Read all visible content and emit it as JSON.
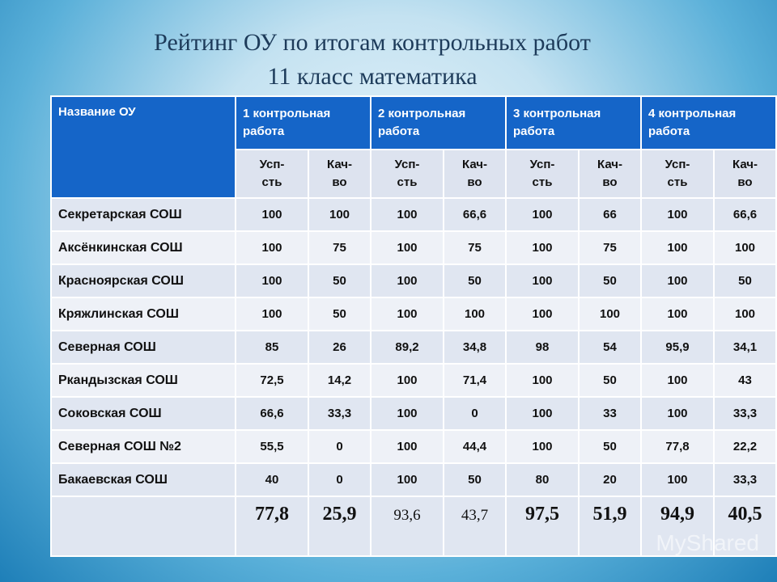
{
  "title_line1": "Рейтинг ОУ по итогам контрольных работ",
  "title_line2": "11 класс математика",
  "table": {
    "header_name": "Название ОУ",
    "works": [
      {
        "line1": "1 контрольная",
        "line2": "работа"
      },
      {
        "line1": "2 контрольная",
        "line2": "работа"
      },
      {
        "line1": "3 контрольная",
        "line2": "работа"
      },
      {
        "line1": "4 контрольная",
        "line2": "работа"
      }
    ],
    "sub_headers": [
      {
        "line1": "Усп-",
        "line2": "сть"
      },
      {
        "line1": "Кач-",
        "line2": "во"
      },
      {
        "line1": "Усп-",
        "line2": "сть"
      },
      {
        "line1": "Кач-",
        "line2": "во"
      },
      {
        "line1": "Усп-",
        "line2": "сть"
      },
      {
        "line1": "Кач-",
        "line2": "во"
      },
      {
        "line1": "Усп-",
        "line2": "сть"
      },
      {
        "line1": "Кач-",
        "line2": "во"
      }
    ],
    "rows": [
      {
        "name": "Секретарская СОШ",
        "values": [
          "100",
          "100",
          "100",
          "66,6",
          "100",
          "66",
          "100",
          "66,6"
        ]
      },
      {
        "name": "Аксёнкинская СОШ",
        "values": [
          "100",
          "75",
          "100",
          "75",
          "100",
          "75",
          "100",
          "100"
        ]
      },
      {
        "name": "Красноярская СОШ",
        "values": [
          "100",
          "50",
          "100",
          "50",
          "100",
          "50",
          "100",
          "50"
        ]
      },
      {
        "name": "Кряжлинская СОШ",
        "values": [
          "100",
          "50",
          "100",
          "100",
          "100",
          "100",
          "100",
          "100"
        ]
      },
      {
        "name": "Северная СОШ",
        "values": [
          "85",
          "26",
          "89,2",
          "34,8",
          "98",
          "54",
          "95,9",
          "34,1"
        ]
      },
      {
        "name": "Ркандызская СОШ",
        "values": [
          "72,5",
          "14,2",
          "100",
          "71,4",
          "100",
          "50",
          "100",
          "43"
        ]
      },
      {
        "name": "Соковская СОШ",
        "values": [
          "66,6",
          "33,3",
          "100",
          "0",
          "100",
          "33",
          "100",
          "33,3"
        ]
      },
      {
        "name": "Северная СОШ №2",
        "values": [
          "55,5",
          "0",
          "100",
          "44,4",
          "100",
          "50",
          "77,8",
          "22,2"
        ]
      },
      {
        "name": "Бакаевская СОШ",
        "values": [
          "40",
          "0",
          "100",
          "50",
          "80",
          "20",
          "100",
          "33,3"
        ]
      }
    ],
    "totals": [
      "77,8",
      "25,9",
      "93,6",
      "43,7",
      "97,5",
      "51,9",
      "94,9",
      "40,5"
    ]
  },
  "watermark": "MyShared"
}
